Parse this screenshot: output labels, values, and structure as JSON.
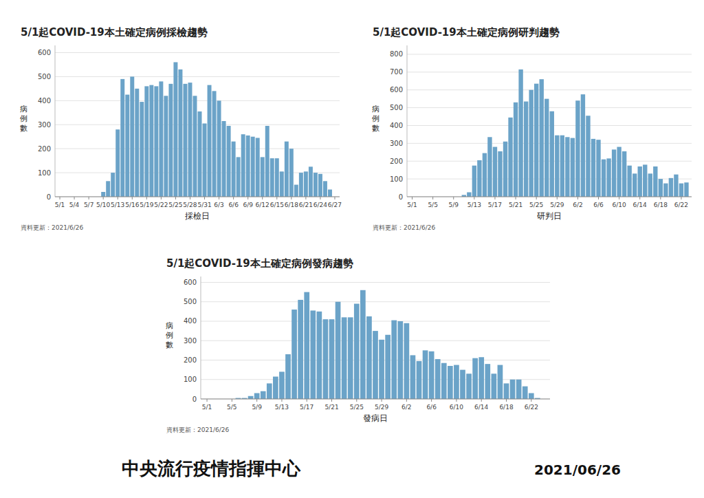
{
  "chart_data": [
    {
      "type": "bar",
      "title": "5/1起COVID-19本土確定病例採檢趨勢",
      "x_label": "採檢日",
      "y_label": "病\n例\n數",
      "annotations": [
        "資料更新：2021/6/26"
      ],
      "color": "#6ba3c8",
      "grid": true,
      "ylim": [
        0,
        630
      ],
      "yticks": [
        0,
        100,
        200,
        300,
        400,
        500,
        600
      ],
      "categories": [
        "5/1",
        null,
        null,
        "5/4",
        null,
        null,
        "5/7",
        null,
        null,
        "5/10",
        null,
        null,
        "5/13",
        null,
        null,
        "5/16",
        null,
        null,
        "5/19",
        null,
        null,
        "5/22",
        null,
        null,
        "5/25",
        null,
        null,
        "5/28",
        null,
        null,
        "5/31",
        null,
        null,
        "6/3",
        null,
        null,
        "6/6",
        null,
        null,
        "6/9",
        null,
        null,
        "6/12",
        null,
        null,
        "6/15",
        null,
        null,
        "6/18",
        null,
        null,
        "6/21",
        null,
        null,
        "6/24",
        null,
        null,
        "6/27"
      ],
      "values": [
        0,
        0,
        0,
        0,
        0,
        0,
        0,
        0,
        0,
        20,
        65,
        100,
        280,
        490,
        425,
        500,
        450,
        395,
        460,
        465,
        460,
        480,
        420,
        470,
        560,
        530,
        470,
        475,
        420,
        355,
        305,
        465,
        440,
        400,
        315,
        295,
        230,
        165,
        260,
        255,
        250,
        245,
        165,
        295,
        160,
        160,
        105,
        230,
        200,
        50,
        100,
        105,
        125,
        100,
        95,
        65,
        30,
        0
      ]
    },
    {
      "type": "bar",
      "title": "5/1起COVID-19本土確定病例研判趨勢",
      "x_label": "研判日",
      "y_label": "病\n例\n數",
      "annotations": [
        "資料更新：2021/6/26"
      ],
      "color": "#6ba3c8",
      "grid": true,
      "ylim": [
        0,
        850
      ],
      "yticks": [
        0,
        100,
        200,
        300,
        400,
        500,
        600,
        700,
        800
      ],
      "categories": [
        "5/1",
        null,
        null,
        null,
        "5/5",
        null,
        null,
        null,
        "5/9",
        null,
        null,
        null,
        "5/13",
        null,
        null,
        null,
        "5/17",
        null,
        null,
        null,
        "5/21",
        null,
        null,
        null,
        "5/25",
        null,
        null,
        null,
        "5/29",
        null,
        null,
        null,
        "6/2",
        null,
        null,
        null,
        "6/6",
        null,
        null,
        null,
        "6/10",
        null,
        null,
        null,
        "6/14",
        null,
        null,
        null,
        "6/18",
        null,
        null,
        null,
        "6/22",
        null
      ],
      "values": [
        0,
        0,
        0,
        0,
        0,
        0,
        0,
        0,
        0,
        0,
        10,
        25,
        175,
        205,
        245,
        335,
        280,
        255,
        310,
        445,
        530,
        715,
        535,
        600,
        635,
        660,
        550,
        480,
        345,
        345,
        335,
        330,
        540,
        575,
        455,
        325,
        320,
        210,
        215,
        265,
        280,
        255,
        175,
        130,
        170,
        180,
        130,
        170,
        100,
        75,
        105,
        125,
        75,
        80
      ]
    },
    {
      "type": "bar",
      "title": "5/1起COVID-19本土確定病例發病趨勢",
      "x_label": "發病日",
      "y_label": "病\n例\n數",
      "annotations": [
        "資料更新：2021/6/26"
      ],
      "color": "#6ba3c8",
      "grid": true,
      "ylim": [
        0,
        630
      ],
      "yticks": [
        0,
        100,
        200,
        300,
        400,
        500,
        600
      ],
      "categories": [
        "5/1",
        null,
        null,
        null,
        "5/5",
        null,
        null,
        null,
        "5/9",
        null,
        null,
        null,
        "5/13",
        null,
        null,
        null,
        "5/17",
        null,
        null,
        null,
        "5/21",
        null,
        null,
        null,
        "5/25",
        null,
        null,
        null,
        "5/29",
        null,
        null,
        null,
        "6/2",
        null,
        null,
        null,
        "6/6",
        null,
        null,
        null,
        "6/10",
        null,
        null,
        null,
        "6/14",
        null,
        null,
        null,
        "6/18",
        null,
        null,
        null,
        "6/22",
        null,
        null
      ],
      "values": [
        0,
        0,
        0,
        0,
        0,
        5,
        5,
        15,
        30,
        40,
        80,
        115,
        140,
        230,
        460,
        510,
        550,
        455,
        450,
        410,
        410,
        500,
        420,
        420,
        490,
        560,
        425,
        350,
        305,
        330,
        405,
        400,
        390,
        225,
        195,
        250,
        245,
        205,
        185,
        170,
        175,
        150,
        130,
        210,
        215,
        180,
        130,
        175,
        80,
        100,
        100,
        65,
        30,
        5,
        0
      ]
    }
  ],
  "annotations": [
    "中央流行疫情指揮中心",
    "2021/06/26"
  ]
}
